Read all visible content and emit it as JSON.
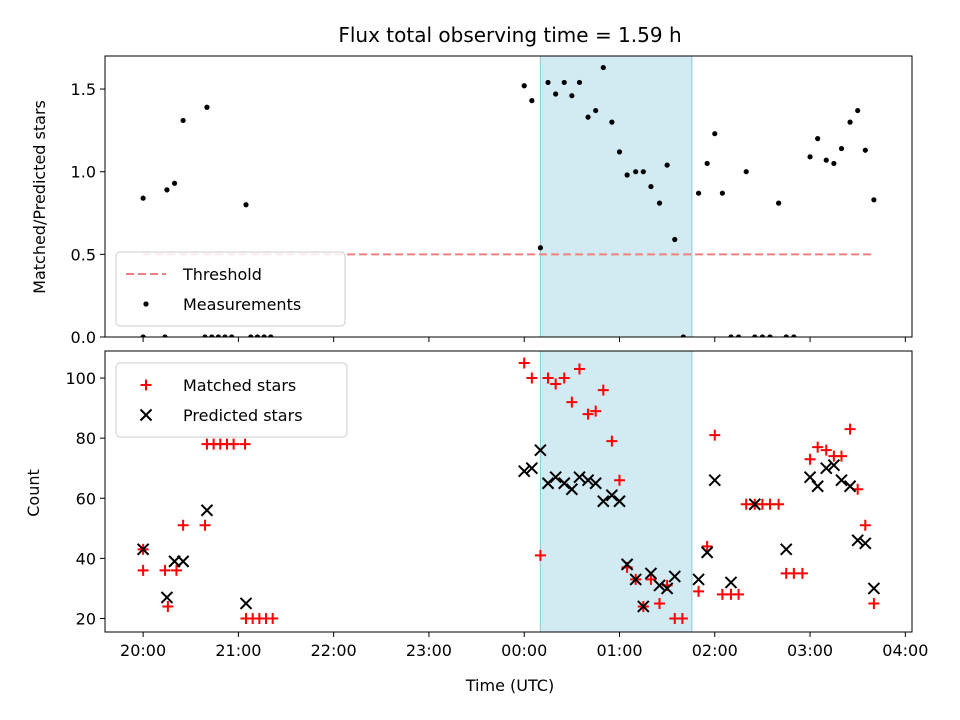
{
  "chart_data": {
    "type": "scatter",
    "title": "Flux total observing time = 1.59 h",
    "xlabel": "Time (UTC)",
    "x_unit": "hours since 20:00 UTC",
    "xlim": [
      -0.4,
      8.07
    ],
    "xticks": [
      {
        "value": 0,
        "label": "20:00"
      },
      {
        "value": 1,
        "label": "21:00"
      },
      {
        "value": 2,
        "label": "22:00"
      },
      {
        "value": 3,
        "label": "23:00"
      },
      {
        "value": 4,
        "label": "00:00"
      },
      {
        "value": 5,
        "label": "01:00"
      },
      {
        "value": 6,
        "label": "02:00"
      },
      {
        "value": 7,
        "label": "03:00"
      },
      {
        "value": 8,
        "label": "04:00"
      }
    ],
    "highlight_span": {
      "x_start": 4.17,
      "x_end": 5.76,
      "color": "#add8e6"
    },
    "panels": [
      {
        "name": "ratio",
        "ylabel": "Matched/Predicted stars",
        "ylim": [
          0,
          1.7
        ],
        "yticks": [
          {
            "value": 0,
            "label": "0.0"
          },
          {
            "value": 0.5,
            "label": "0.5"
          },
          {
            "value": 1.0,
            "label": "1.0"
          },
          {
            "value": 1.5,
            "label": "1.5"
          }
        ],
        "legend": {
          "placement": "lower-left",
          "entries": [
            {
              "label": "Threshold",
              "marker": "dashed-line",
              "color": "#f08080"
            },
            {
              "label": "Measurements",
              "marker": "dot",
              "color": "#000000"
            }
          ]
        },
        "threshold": {
          "y": 0.5,
          "x_start": 0,
          "x_end": 7.68,
          "color": "#f08080"
        },
        "series": [
          {
            "name": "Measurements",
            "color": "#000000",
            "points": [
              [
                0.0,
                0.84
              ],
              [
                0.25,
                0.89
              ],
              [
                0.33,
                0.93
              ],
              [
                0.42,
                1.31
              ],
              [
                0.67,
                1.39
              ],
              [
                1.08,
                0.8
              ],
              [
                0.0,
                0.0
              ],
              [
                0.23,
                0.0
              ],
              [
                0.65,
                0.0
              ],
              [
                0.72,
                0.0
              ],
              [
                0.79,
                0.0
              ],
              [
                0.86,
                0.0
              ],
              [
                0.93,
                0.0
              ],
              [
                1.13,
                0.0
              ],
              [
                1.2,
                0.0
              ],
              [
                1.27,
                0.0
              ],
              [
                1.34,
                0.0
              ],
              [
                4.0,
                1.52
              ],
              [
                4.08,
                1.43
              ],
              [
                4.17,
                0.54
              ],
              [
                4.25,
                1.54
              ],
              [
                4.33,
                1.47
              ],
              [
                4.42,
                1.54
              ],
              [
                4.5,
                1.46
              ],
              [
                4.58,
                1.54
              ],
              [
                4.67,
                1.33
              ],
              [
                4.75,
                1.37
              ],
              [
                4.83,
                1.63
              ],
              [
                4.92,
                1.3
              ],
              [
                5.0,
                1.12
              ],
              [
                5.08,
                0.98
              ],
              [
                5.17,
                1.0
              ],
              [
                5.25,
                1.0
              ],
              [
                5.33,
                0.91
              ],
              [
                5.42,
                0.81
              ],
              [
                5.5,
                1.04
              ],
              [
                5.58,
                0.59
              ],
              [
                5.67,
                0.0
              ],
              [
                5.83,
                0.87
              ],
              [
                5.92,
                1.05
              ],
              [
                6.0,
                1.23
              ],
              [
                6.08,
                0.87
              ],
              [
                6.17,
                0.0
              ],
              [
                6.25,
                0.0
              ],
              [
                6.33,
                1.0
              ],
              [
                6.42,
                0.0
              ],
              [
                6.5,
                0.0
              ],
              [
                6.58,
                0.0
              ],
              [
                6.67,
                0.81
              ],
              [
                6.75,
                0.0
              ],
              [
                6.83,
                0.0
              ],
              [
                7.0,
                1.09
              ],
              [
                7.08,
                1.2
              ],
              [
                7.17,
                1.07
              ],
              [
                7.25,
                1.05
              ],
              [
                7.33,
                1.14
              ],
              [
                7.42,
                1.3
              ],
              [
                7.5,
                1.37
              ],
              [
                7.58,
                1.13
              ],
              [
                7.67,
                0.83
              ]
            ]
          }
        ]
      },
      {
        "name": "counts",
        "ylabel": "Count",
        "ylim": [
          15.5,
          109
        ],
        "yticks": [
          {
            "value": 20,
            "label": "20"
          },
          {
            "value": 40,
            "label": "40"
          },
          {
            "value": 60,
            "label": "60"
          },
          {
            "value": 80,
            "label": "80"
          },
          {
            "value": 100,
            "label": "100"
          }
        ],
        "legend": {
          "placement": "upper-left",
          "entries": [
            {
              "label": "Matched stars",
              "marker": "plus",
              "color": "#ff0000"
            },
            {
              "label": "Predicted stars",
              "marker": "x",
              "color": "#000000"
            }
          ]
        },
        "series": [
          {
            "name": "Matched stars",
            "marker": "plus",
            "color": "#ff0000",
            "points": [
              [
                0.0,
                43
              ],
              [
                0.0,
                36
              ],
              [
                0.23,
                36
              ],
              [
                0.26,
                24
              ],
              [
                0.35,
                36
              ],
              [
                0.42,
                51
              ],
              [
                0.65,
                51
              ],
              [
                0.67,
                78
              ],
              [
                0.74,
                78
              ],
              [
                0.81,
                78
              ],
              [
                0.88,
                78
              ],
              [
                0.95,
                78
              ],
              [
                1.07,
                78
              ],
              [
                1.08,
                20
              ],
              [
                1.15,
                20
              ],
              [
                1.22,
                20
              ],
              [
                1.29,
                20
              ],
              [
                1.36,
                20
              ],
              [
                4.0,
                105
              ],
              [
                4.08,
                100
              ],
              [
                4.17,
                41
              ],
              [
                4.25,
                100
              ],
              [
                4.33,
                98
              ],
              [
                4.42,
                100
              ],
              [
                4.5,
                92
              ],
              [
                4.58,
                103
              ],
              [
                4.67,
                88
              ],
              [
                4.75,
                89
              ],
              [
                4.83,
                96
              ],
              [
                4.92,
                79
              ],
              [
                5.0,
                66
              ],
              [
                5.08,
                37
              ],
              [
                5.17,
                33
              ],
              [
                5.25,
                24
              ],
              [
                5.33,
                33
              ],
              [
                5.42,
                25
              ],
              [
                5.5,
                31
              ],
              [
                5.58,
                20
              ],
              [
                5.66,
                20
              ],
              [
                5.83,
                29
              ],
              [
                5.92,
                44
              ],
              [
                6.0,
                81
              ],
              [
                6.08,
                28
              ],
              [
                6.17,
                28
              ],
              [
                6.25,
                28
              ],
              [
                6.33,
                58
              ],
              [
                6.42,
                58
              ],
              [
                6.5,
                58
              ],
              [
                6.58,
                58
              ],
              [
                6.67,
                58
              ],
              [
                6.75,
                35
              ],
              [
                6.83,
                35
              ],
              [
                6.92,
                35
              ],
              [
                7.0,
                73
              ],
              [
                7.08,
                77
              ],
              [
                7.17,
                76
              ],
              [
                7.25,
                74
              ],
              [
                7.33,
                74
              ],
              [
                7.42,
                83
              ],
              [
                7.5,
                63
              ],
              [
                7.58,
                51
              ],
              [
                7.67,
                25
              ]
            ]
          },
          {
            "name": "Predicted stars",
            "marker": "x",
            "color": "#000000",
            "points": [
              [
                0.0,
                43
              ],
              [
                0.25,
                27
              ],
              [
                0.33,
                39
              ],
              [
                0.42,
                39
              ],
              [
                0.67,
                56
              ],
              [
                1.08,
                25
              ],
              [
                4.0,
                69
              ],
              [
                4.08,
                70
              ],
              [
                4.17,
                76
              ],
              [
                4.25,
                65
              ],
              [
                4.33,
                67
              ],
              [
                4.42,
                65
              ],
              [
                4.5,
                63
              ],
              [
                4.58,
                67
              ],
              [
                4.67,
                66
              ],
              [
                4.75,
                65
              ],
              [
                4.83,
                59
              ],
              [
                4.92,
                61
              ],
              [
                5.0,
                59
              ],
              [
                5.08,
                38
              ],
              [
                5.17,
                33
              ],
              [
                5.25,
                24
              ],
              [
                5.33,
                35
              ],
              [
                5.42,
                31
              ],
              [
                5.5,
                30
              ],
              [
                5.58,
                34
              ],
              [
                5.83,
                33
              ],
              [
                5.92,
                42
              ],
              [
                6.0,
                66
              ],
              [
                6.17,
                32
              ],
              [
                6.42,
                58
              ],
              [
                6.75,
                43
              ],
              [
                7.0,
                67
              ],
              [
                7.08,
                64
              ],
              [
                7.17,
                70
              ],
              [
                7.25,
                71
              ],
              [
                7.33,
                66
              ],
              [
                7.42,
                64
              ],
              [
                7.5,
                46
              ],
              [
                7.58,
                45
              ],
              [
                7.67,
                30
              ]
            ]
          }
        ]
      }
    ]
  }
}
